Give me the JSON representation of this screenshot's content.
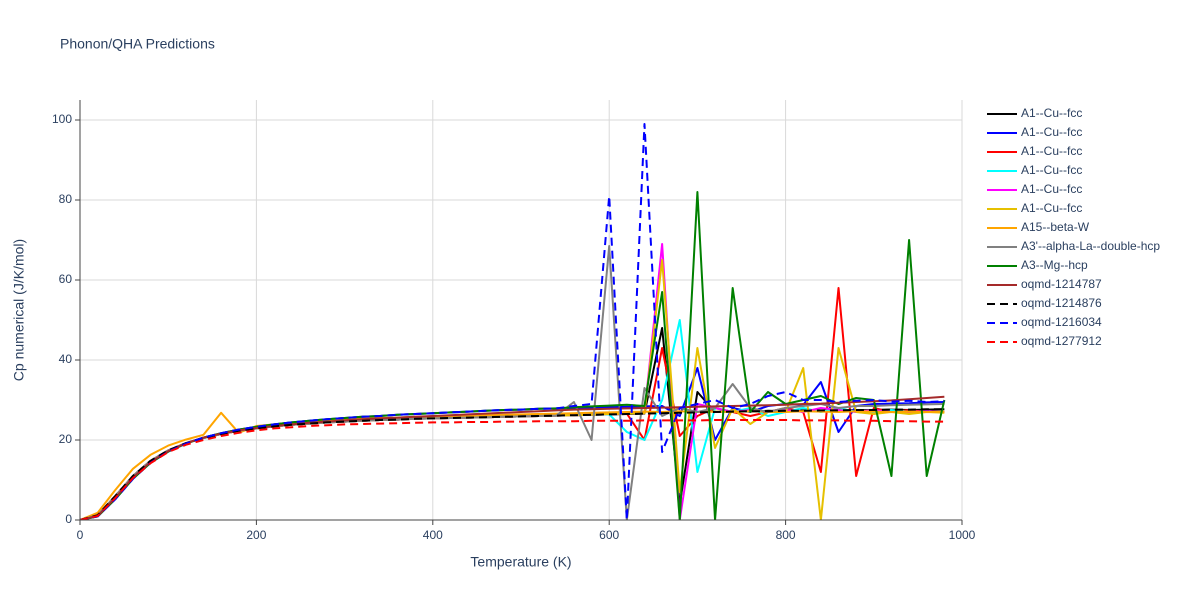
{
  "chart_data": {
    "type": "line",
    "title": "Phonon/QHA Predictions",
    "x_label": "Temperature (K)",
    "y_label": "Cp numerical (J/K/mol)",
    "xlim": [
      0,
      1000
    ],
    "xticks": [
      0,
      200,
      400,
      600,
      800,
      1000
    ],
    "ylim": [
      0,
      105
    ],
    "yticks": [
      0,
      20,
      40,
      60,
      80,
      100
    ],
    "grid": true,
    "legend": "right",
    "x": [
      0,
      20,
      40,
      60,
      80,
      100,
      120,
      140,
      160,
      180,
      200,
      220,
      240,
      260,
      280,
      300,
      320,
      340,
      360,
      380,
      400,
      420,
      440,
      460,
      480,
      500,
      520,
      540,
      560,
      580,
      600,
      620,
      640,
      660,
      680,
      700,
      720,
      740,
      760,
      780,
      800,
      820,
      840,
      860,
      880,
      900,
      920,
      940,
      960,
      980
    ],
    "series": [
      {
        "name": "A1--Cu--fcc",
        "color": "#000000",
        "dash": "solid",
        "values": [
          0,
          1.2,
          6,
          11,
          14.8,
          17.4,
          19.2,
          20.5,
          21.5,
          22.3,
          22.9,
          23.4,
          23.8,
          24.1,
          24.4,
          24.6,
          24.8,
          25,
          25.1,
          25.3,
          25.4,
          25.5,
          25.6,
          25.7,
          25.8,
          25.9,
          26,
          26.1,
          26.2,
          26.3,
          26.4,
          26.5,
          26.6,
          48,
          4,
          32,
          27,
          27.2,
          27.1,
          27.3,
          27.2,
          27.4,
          27.3,
          27.5,
          27.4,
          27.5,
          27.6,
          27.5,
          27.6,
          27.7
        ]
      },
      {
        "name": "A1--Cu--fcc",
        "color": "#0000ff",
        "dash": "solid",
        "values": [
          0,
          0.9,
          5.2,
          10.3,
          14.3,
          17.1,
          19.1,
          20.6,
          21.7,
          22.6,
          23.3,
          23.9,
          24.4,
          24.8,
          25.2,
          25.5,
          25.8,
          26,
          26.3,
          26.5,
          26.7,
          26.9,
          27.1,
          27.3,
          27.5,
          27.6,
          27.8,
          27.9,
          28,
          28.1,
          28.2,
          28.3,
          28.4,
          28.5,
          26,
          38,
          20,
          28,
          27,
          28.5,
          29,
          28.8,
          34.5,
          22,
          28.5,
          29,
          29.1,
          29.2,
          29.4,
          29.5
        ]
      },
      {
        "name": "A1--Cu--fcc",
        "color": "#ff0000",
        "dash": "solid",
        "values": [
          0,
          1.2,
          6,
          11,
          14.8,
          17.4,
          19.2,
          20.5,
          21.5,
          22.3,
          22.9,
          23.4,
          23.8,
          24.1,
          24.4,
          24.6,
          24.8,
          25,
          25.1,
          25.3,
          25.4,
          25.5,
          25.6,
          25.7,
          25.8,
          25.9,
          26,
          26.1,
          26.2,
          26.3,
          26.4,
          26.6,
          20,
          43,
          21,
          26,
          28,
          27,
          26,
          27,
          28,
          27,
          12,
          58,
          11,
          28,
          27,
          27.5,
          27,
          27
        ]
      },
      {
        "name": "A1--Cu--fcc",
        "color": "#00ffff",
        "dash": "solid",
        "values": [
          0,
          1.2,
          6,
          11,
          14.8,
          17.4,
          19.2,
          20.5,
          21.5,
          22.3,
          22.9,
          23.4,
          23.8,
          24.1,
          24.4,
          24.6,
          24.8,
          25,
          25.1,
          25.3,
          25.4,
          25.5,
          25.6,
          25.7,
          25.8,
          25.9,
          26,
          26.1,
          26.2,
          26.3,
          26.4,
          22,
          20,
          30,
          50,
          12,
          28,
          27,
          28,
          26,
          27,
          28,
          27,
          28,
          27,
          27,
          27.5,
          27,
          27.2,
          27
        ]
      },
      {
        "name": "A1--Cu--fcc",
        "color": "#ff00ff",
        "dash": "solid",
        "values": [
          0,
          1.2,
          6,
          11,
          14.8,
          17.4,
          19.2,
          20.5,
          21.5,
          22.3,
          22.9,
          23.4,
          23.8,
          24.1,
          24.4,
          24.6,
          24.8,
          25,
          25.1,
          25.3,
          25.4,
          25.5,
          25.6,
          25.7,
          25.8,
          25.9,
          26,
          26.1,
          26.2,
          26.3,
          26.5,
          26.6,
          26.7,
          69,
          0,
          29,
          28,
          27,
          27.5,
          27,
          27.5,
          27,
          28,
          27.5,
          27,
          27.5,
          27,
          27,
          27.2,
          27
        ]
      },
      {
        "name": "A1--Cu--fcc",
        "color": "#e6c000",
        "dash": "solid",
        "values": [
          0,
          1.2,
          6,
          11,
          14.8,
          17.4,
          19.2,
          20.5,
          21.5,
          22.3,
          22.9,
          23.4,
          23.8,
          24.1,
          24.4,
          24.6,
          24.8,
          25,
          25.1,
          25.3,
          25.4,
          25.5,
          25.6,
          25.7,
          25.8,
          25.9,
          26,
          26.1,
          26.2,
          26.3,
          26.5,
          26.6,
          26.7,
          65,
          7,
          43,
          18,
          28,
          24,
          27,
          27,
          38,
          0,
          43,
          27,
          26.5,
          27,
          26.5,
          27,
          26.8
        ]
      },
      {
        "name": "A15--beta-W",
        "color": "#ffa500",
        "dash": "solid",
        "values": [
          0,
          1.8,
          7.5,
          12.8,
          16.3,
          18.6,
          20.1,
          21.3,
          26.8,
          21.8,
          23.5,
          23.9,
          24.3,
          24.6,
          24.9,
          25.1,
          25.3,
          25.5,
          25.6,
          25.8,
          25.9,
          26,
          26.1,
          26.2,
          26.3,
          26.4,
          26.5,
          26.6,
          26.7,
          26.8,
          26.9,
          27,
          27.1,
          27,
          27.2,
          27,
          27.1,
          27,
          27.2,
          27.1,
          27,
          27.2,
          27.1,
          27,
          27.2,
          27.1,
          27,
          27.1,
          27,
          27.1
        ]
      },
      {
        "name": "A3'--alpha-La--double-hcp",
        "color": "#808080",
        "dash": "solid",
        "values": [
          0,
          1.2,
          6,
          11,
          14.8,
          17.4,
          19.2,
          20.5,
          21.5,
          22.3,
          22.9,
          23.4,
          23.8,
          24.1,
          24.4,
          24.6,
          24.8,
          25,
          25.1,
          25.3,
          25.4,
          25.5,
          25.6,
          25.7,
          25.8,
          25.9,
          26,
          26.1,
          29.5,
          20,
          68.5,
          0,
          33,
          26,
          28,
          27,
          28,
          34,
          28,
          27,
          28,
          28.5,
          29,
          28,
          28.5,
          28.5,
          28.7,
          28.8,
          28.9,
          29
        ]
      },
      {
        "name": "A3--Mg--hcp",
        "color": "#008000",
        "dash": "solid",
        "values": [
          0,
          0.9,
          5.2,
          10.3,
          14.3,
          17.1,
          19.1,
          20.6,
          21.7,
          22.6,
          23.3,
          23.9,
          24.4,
          24.8,
          25.2,
          25.5,
          25.8,
          26,
          26.3,
          26.5,
          26.7,
          26.9,
          27.1,
          27.3,
          27.5,
          27.6,
          27.8,
          27.9,
          28.2,
          28.4,
          28.6,
          28.8,
          28.5,
          57,
          0,
          82,
          0,
          58,
          27,
          32,
          29,
          30,
          31,
          29,
          30.5,
          30,
          11,
          70,
          11,
          30
        ]
      },
      {
        "name": "oqmd-1214787",
        "color": "#a52a2a",
        "dash": "solid",
        "values": [
          0,
          1,
          5.5,
          10.6,
          14.5,
          17.2,
          19.2,
          20.6,
          21.6,
          22.4,
          23,
          23.5,
          23.9,
          24.3,
          24.6,
          24.9,
          25.2,
          25.4,
          25.6,
          25.8,
          26,
          26.2,
          26.4,
          26.6,
          26.8,
          27,
          27.2,
          27.4,
          27.6,
          27.7,
          27.8,
          27.9,
          28,
          28.1,
          28.2,
          28.3,
          28.4,
          28.5,
          28.6,
          28.7,
          28.8,
          29,
          29.1,
          29.3,
          29.5,
          29.7,
          29.9,
          30.2,
          30.5,
          30.8
        ]
      },
      {
        "name": "oqmd-1214876",
        "color": "#000000",
        "dash": "dash",
        "values": [
          0,
          1.2,
          6,
          11,
          14.8,
          17.4,
          19.2,
          20.5,
          21.5,
          22.3,
          22.9,
          23.4,
          23.8,
          24.1,
          24.4,
          24.6,
          24.8,
          25,
          25.1,
          25.3,
          25.4,
          25.5,
          25.6,
          25.7,
          25.8,
          25.9,
          26,
          26.1,
          26.2,
          26.3,
          26.4,
          26.5,
          26.6,
          26.7,
          26.8,
          26.9,
          27,
          27.1,
          27.2,
          27.2,
          27.3,
          27.3,
          27.4,
          27.4,
          27.5,
          27.5,
          27.6,
          27.6,
          27.7,
          27.7
        ]
      },
      {
        "name": "oqmd-1216034",
        "color": "#0000ff",
        "dash": "dash",
        "values": [
          0,
          0.9,
          5.2,
          10.3,
          14.3,
          17.1,
          19.1,
          20.6,
          21.7,
          22.6,
          23.3,
          23.9,
          24.4,
          24.8,
          25.2,
          25.5,
          25.8,
          26,
          26.3,
          26.5,
          26.7,
          26.9,
          27.1,
          27.3,
          27.5,
          27.6,
          27.8,
          27.9,
          28.5,
          29,
          81,
          0,
          99,
          17,
          28,
          29,
          30,
          28,
          29,
          31,
          32,
          30,
          30,
          29.5,
          29.8,
          30,
          29.6,
          29.8,
          29.5,
          29.7
        ]
      },
      {
        "name": "oqmd-1277912",
        "color": "#ff0000",
        "dash": "dash",
        "values": [
          0,
          1,
          5.5,
          10.5,
          14.2,
          17,
          18.8,
          20,
          21,
          21.8,
          22.4,
          22.9,
          23.2,
          23.5,
          23.7,
          23.9,
          24,
          24.1,
          24.2,
          24.3,
          24.4,
          24.4,
          24.5,
          24.5,
          24.6,
          24.6,
          24.7,
          24.7,
          24.7,
          24.8,
          24.8,
          24.8,
          24.9,
          24.9,
          24.9,
          24.9,
          25,
          25,
          25,
          25,
          25,
          24.9,
          24.9,
          24.9,
          24.8,
          24.8,
          24.7,
          24.7,
          24.6,
          24.6
        ]
      }
    ]
  }
}
